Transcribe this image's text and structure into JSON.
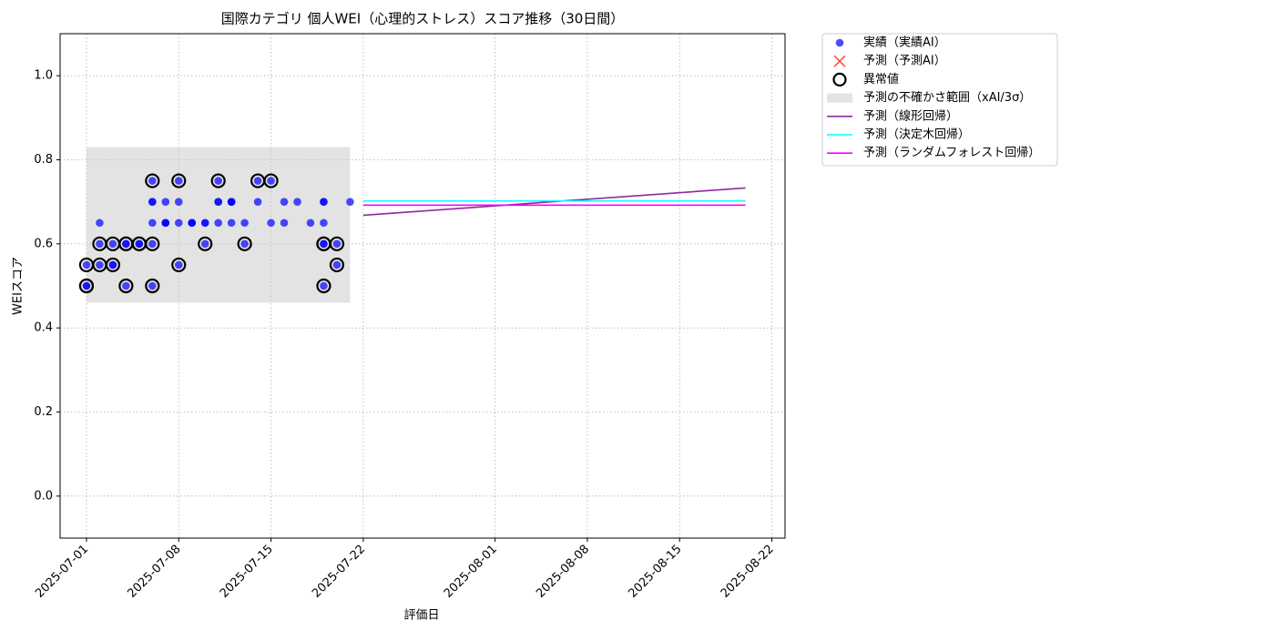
{
  "chart_data": {
    "type": "scatter",
    "title": "国際カテゴリ 個人WEI（心理的ストレス）スコア推移（30日間）",
    "x_label": "評価日",
    "y_label": "WEIスコア",
    "xlim": [
      "2025-06-29",
      "2025-08-23"
    ],
    "xticks": [
      "2025-07-01",
      "2025-07-08",
      "2025-07-15",
      "2025-07-22",
      "2025-08-01",
      "2025-08-08",
      "2025-08-15",
      "2025-08-22"
    ],
    "ylim": [
      -0.1,
      1.1
    ],
    "yticks": [
      {
        "value": 0,
        "label": "0.0"
      },
      0.2,
      0.4,
      0.6,
      0.8,
      {
        "value": 1,
        "label": "1.0"
      }
    ],
    "grid": true,
    "legend": "outside-upper-right",
    "series": [
      {
        "name": "実績（実績AI）",
        "kind": "scatter",
        "color": "#0000ff",
        "x": [
          "2025-07-01",
          "2025-07-01",
          "2025-07-01",
          "2025-07-02",
          "2025-07-02",
          "2025-07-02",
          "2025-07-03",
          "2025-07-03",
          "2025-07-03",
          "2025-07-04",
          "2025-07-04",
          "2025-07-04",
          "2025-07-05",
          "2025-07-05",
          "2025-07-06",
          "2025-07-06",
          "2025-07-06",
          "2025-07-06",
          "2025-07-06",
          "2025-07-06",
          "2025-07-07",
          "2025-07-07",
          "2025-07-07",
          "2025-07-07",
          "2025-07-08",
          "2025-07-08",
          "2025-07-08",
          "2025-07-08",
          "2025-07-09",
          "2025-07-09",
          "2025-07-09",
          "2025-07-10",
          "2025-07-10",
          "2025-07-10",
          "2025-07-11",
          "2025-07-11",
          "2025-07-11",
          "2025-07-11",
          "2025-07-12",
          "2025-07-12",
          "2025-07-12",
          "2025-07-12",
          "2025-07-13",
          "2025-07-13",
          "2025-07-14",
          "2025-07-14",
          "2025-07-15",
          "2025-07-15",
          "2025-07-16",
          "2025-07-16",
          "2025-07-17",
          "2025-07-18",
          "2025-07-19",
          "2025-07-19",
          "2025-07-19",
          "2025-07-19",
          "2025-07-19",
          "2025-07-19",
          "2025-07-20",
          "2025-07-20",
          "2025-07-21"
        ],
        "values": [
          0.5,
          0.55,
          0.5,
          0.65,
          0.6,
          0.55,
          0.55,
          0.6,
          0.55,
          0.5,
          0.6,
          0.6,
          0.6,
          0.6,
          0.6,
          0.5,
          0.65,
          0.75,
          0.7,
          0.7,
          0.7,
          0.65,
          0.65,
          0.65,
          0.75,
          0.7,
          0.65,
          0.55,
          0.65,
          0.65,
          0.65,
          0.65,
          0.6,
          0.65,
          0.7,
          0.65,
          0.75,
          0.7,
          0.65,
          0.7,
          0.7,
          0.7,
          0.65,
          0.6,
          0.75,
          0.7,
          0.75,
          0.65,
          0.7,
          0.65,
          0.7,
          0.65,
          0.6,
          0.6,
          0.5,
          0.7,
          0.7,
          0.65,
          0.6,
          0.55,
          0.7
        ]
      },
      {
        "name": "予測（予測AI）",
        "kind": "x-marker",
        "color": "#ff0000",
        "x": [],
        "values": []
      },
      {
        "name": "異常値",
        "kind": "outlier",
        "color": "#000000",
        "x": [
          "2025-07-01",
          "2025-07-01",
          "2025-07-01",
          "2025-07-02",
          "2025-07-02",
          "2025-07-03",
          "2025-07-03",
          "2025-07-04",
          "2025-07-04",
          "2025-07-04",
          "2025-07-05",
          "2025-07-05",
          "2025-07-06",
          "2025-07-06",
          "2025-07-06",
          "2025-07-08",
          "2025-07-08",
          "2025-07-10",
          "2025-07-11",
          "2025-07-13",
          "2025-07-14",
          "2025-07-15",
          "2025-07-19",
          "2025-07-19",
          "2025-07-19",
          "2025-07-20",
          "2025-07-20"
        ],
        "values": [
          0.5,
          0.55,
          0.5,
          0.6,
          0.55,
          0.6,
          0.55,
          0.5,
          0.6,
          0.6,
          0.6,
          0.6,
          0.6,
          0.5,
          0.75,
          0.75,
          0.55,
          0.6,
          0.75,
          0.6,
          0.75,
          0.75,
          0.6,
          0.6,
          0.5,
          0.6,
          0.55
        ]
      },
      {
        "name": "予測の不確かさ範囲（xAI/3σ）",
        "kind": "band",
        "color": "#cccccc",
        "x": [
          "2025-07-01",
          "2025-07-21"
        ],
        "lower": 0.46,
        "upper": 0.83
      },
      {
        "name": "予測（線形回帰）",
        "kind": "line",
        "color": "#8e2a9e",
        "x": [
          "2025-07-22",
          "2025-08-20"
        ],
        "values": [
          0.668,
          0.733
        ]
      },
      {
        "name": "予測（決定木回帰）",
        "kind": "line",
        "color": "#00ffff",
        "x": [
          "2025-07-22",
          "2025-08-20"
        ],
        "values": [
          0.702,
          0.702
        ]
      },
      {
        "name": "予測（ランダムフォレスト回帰）",
        "kind": "line",
        "color": "#ff00ff",
        "x": [
          "2025-07-22",
          "2025-08-20"
        ],
        "values": [
          0.692,
          0.692
        ]
      }
    ]
  }
}
